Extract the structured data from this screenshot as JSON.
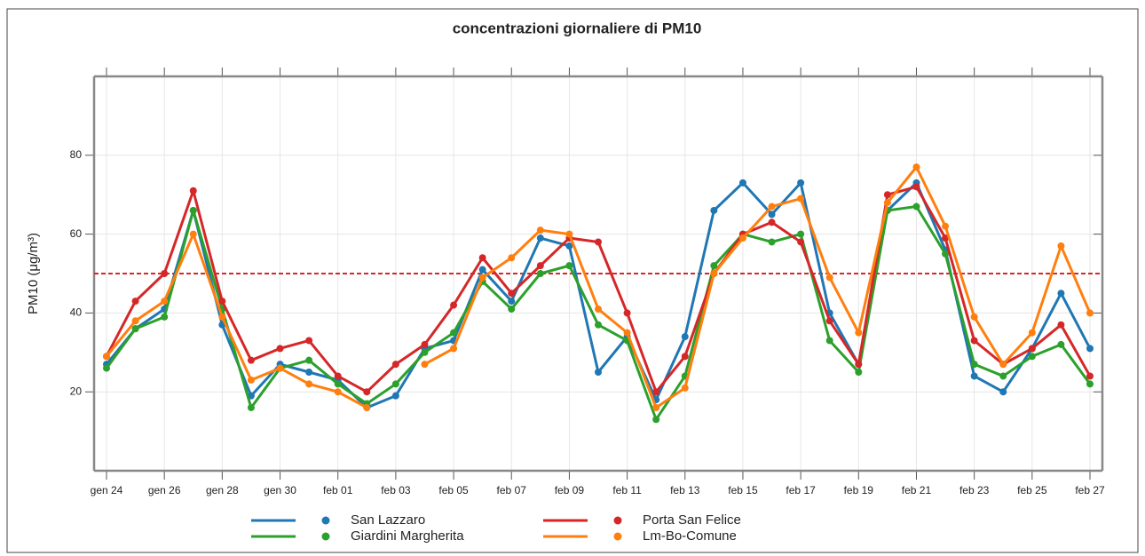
{
  "chart_data": {
    "type": "line",
    "title": "concentrazioni giornaliere di PM10",
    "y_label": "PM10 (μg/m³)",
    "categories": [
      "gen 24",
      null,
      "gen 26",
      null,
      "gen 28",
      null,
      "gen 30",
      null,
      "feb 01",
      null,
      "feb 03",
      null,
      "feb 05",
      null,
      "feb 07",
      null,
      "feb 09",
      null,
      "feb 11",
      null,
      "feb 13",
      null,
      "feb 15",
      null,
      "feb 17",
      null,
      "feb 19",
      null,
      "feb 21",
      null,
      "feb 23",
      null,
      "feb 25",
      null,
      "feb 27"
    ],
    "series": [
      {
        "name": "San Lazzaro",
        "color": "#1f77b4",
        "values": [
          27,
          36,
          41,
          66,
          37,
          19,
          27,
          25,
          23,
          16,
          19,
          31,
          33,
          51,
          43,
          59,
          57,
          25,
          34,
          18,
          34,
          66,
          73,
          65,
          73,
          40,
          27,
          66,
          73,
          56,
          24,
          20,
          31,
          45,
          31
        ]
      },
      {
        "name": "Giardini Margherita",
        "color": "#2ca02c",
        "values": [
          26,
          36,
          39,
          66,
          41,
          16,
          26,
          28,
          22,
          17,
          22,
          30,
          35,
          48,
          41,
          50,
          52,
          37,
          33,
          13,
          24,
          52,
          60,
          58,
          60,
          33,
          25,
          66,
          67,
          55,
          27,
          24,
          29,
          32,
          22
        ]
      },
      {
        "name": "Porta San Felice",
        "color": "#d62728",
        "values": [
          29,
          43,
          50,
          71,
          43,
          28,
          31,
          33,
          24,
          20,
          27,
          32,
          42,
          54,
          45,
          52,
          59,
          58,
          40,
          20,
          29,
          50,
          60,
          63,
          58,
          38,
          27,
          70,
          72,
          59,
          33,
          27,
          31,
          37,
          24
        ]
      },
      {
        "name": "Lm-Bo-Comune",
        "color": "#ff7f0e",
        "values": [
          29,
          38,
          43,
          60,
          39,
          23,
          26,
          22,
          20,
          16,
          null,
          27,
          31,
          49,
          54,
          61,
          60,
          41,
          35,
          16,
          21,
          50,
          59,
          67,
          69,
          49,
          35,
          68,
          77,
          62,
          39,
          27,
          35,
          57,
          40
        ]
      }
    ],
    "reference_line": {
      "value": 50,
      "color": "#d62728"
    },
    "ylim": [
      0,
      100
    ],
    "yticks": [
      20,
      40,
      60,
      80
    ],
    "grid": true
  }
}
